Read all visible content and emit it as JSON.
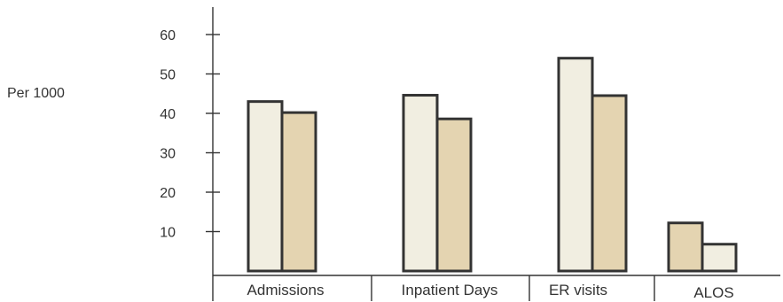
{
  "chart_data": {
    "type": "bar",
    "ylabel": "Per 1000",
    "ylim": [
      0,
      60
    ],
    "yticks": [
      10,
      20,
      30,
      40,
      50,
      60
    ],
    "grid": false,
    "legend": "none",
    "categories": [
      "Admissions",
      "Inpatient Days",
      "ER visits",
      "ALOS"
    ],
    "bar_values": [
      [
        43,
        40.2
      ],
      [
        44.6,
        38.6
      ],
      [
        54,
        44.5
      ],
      [
        12.2,
        6.8
      ]
    ],
    "bar_colors": [
      [
        "#f1eee1",
        "#e4d4b1"
      ],
      [
        "#f1eee1",
        "#e4d4b1"
      ],
      [
        "#f1eee1",
        "#e4d4b1"
      ],
      [
        "#e4d4b1",
        "#f1eee1"
      ]
    ]
  }
}
